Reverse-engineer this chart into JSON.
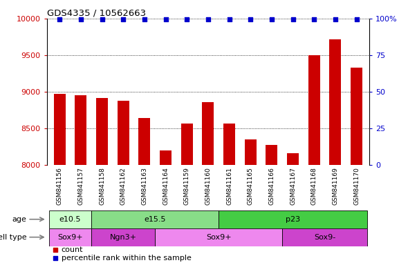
{
  "title": "GDS4335 / 10562663",
  "samples": [
    "GSM841156",
    "GSM841157",
    "GSM841158",
    "GSM841162",
    "GSM841163",
    "GSM841164",
    "GSM841159",
    "GSM841160",
    "GSM841161",
    "GSM841165",
    "GSM841166",
    "GSM841167",
    "GSM841168",
    "GSM841169",
    "GSM841170"
  ],
  "counts": [
    8970,
    8950,
    8910,
    8880,
    8640,
    8200,
    8560,
    8860,
    8560,
    8350,
    8270,
    8160,
    9500,
    9720,
    9330
  ],
  "percentile": [
    100,
    100,
    100,
    100,
    100,
    100,
    100,
    100,
    100,
    100,
    100,
    100,
    100,
    100,
    100
  ],
  "bar_color": "#cc0000",
  "dot_color": "#0000cc",
  "ylim_left": [
    8000,
    10000
  ],
  "ylim_right": [
    0,
    100
  ],
  "yticks_left": [
    8000,
    8500,
    9000,
    9500,
    10000
  ],
  "yticks_right": [
    0,
    25,
    50,
    75,
    100
  ],
  "ytick_labels_right": [
    "0",
    "25",
    "50",
    "75",
    "100%"
  ],
  "age_groups": [
    {
      "label": "e10.5",
      "start": 0,
      "end": 2,
      "color": "#ccffcc"
    },
    {
      "label": "e15.5",
      "start": 2,
      "end": 8,
      "color": "#88dd88"
    },
    {
      "label": "p23",
      "start": 8,
      "end": 15,
      "color": "#44cc44"
    }
  ],
  "cell_groups": [
    {
      "label": "Sox9+",
      "start": 0,
      "end": 2,
      "color": "#ee88ee"
    },
    {
      "label": "Ngn3+",
      "start": 2,
      "end": 5,
      "color": "#cc44cc"
    },
    {
      "label": "Sox9+",
      "start": 5,
      "end": 11,
      "color": "#ee88ee"
    },
    {
      "label": "Sox9-",
      "start": 11,
      "end": 15,
      "color": "#cc44cc"
    }
  ],
  "legend_count_color": "#cc0000",
  "legend_dot_color": "#0000cc",
  "xlabel_age": "age",
  "xlabel_cell": "cell type",
  "tick_color_left": "#cc0000",
  "tick_color_right": "#0000cc",
  "xtick_bg": "#d8d8d8",
  "background_color": "#ffffff"
}
